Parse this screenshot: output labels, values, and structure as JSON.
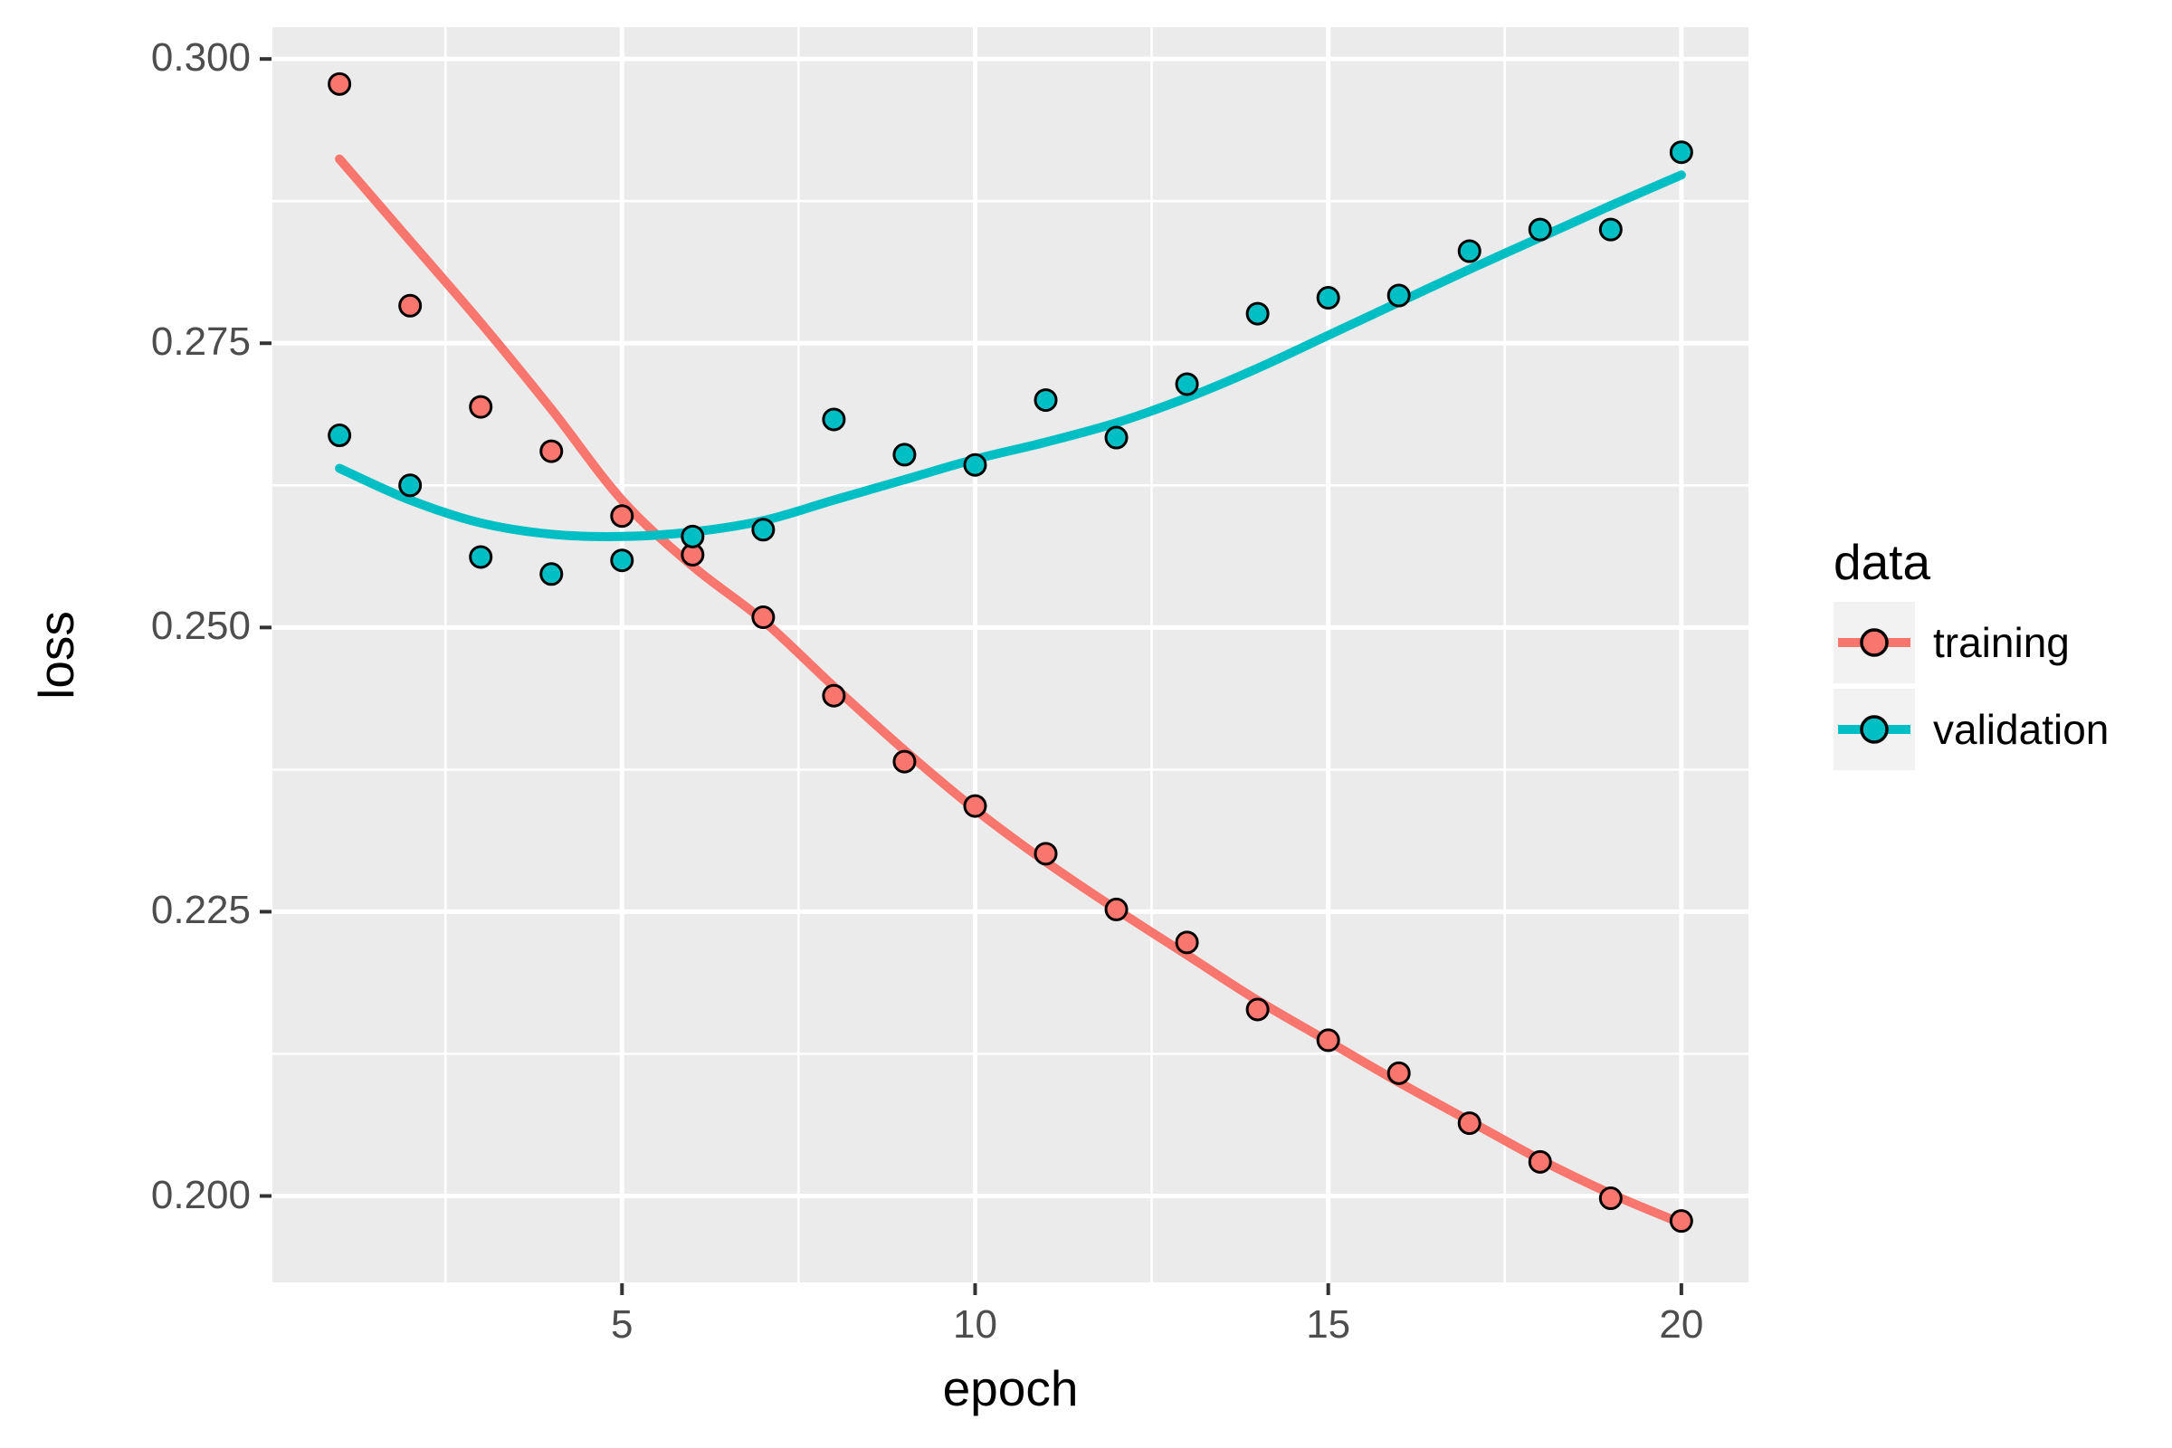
{
  "chart_data": {
    "type": "scatter",
    "xlabel": "epoch",
    "ylabel": "loss",
    "x": [
      1,
      2,
      3,
      4,
      5,
      6,
      7,
      8,
      9,
      10,
      11,
      12,
      13,
      14,
      15,
      16,
      17,
      18,
      19,
      20
    ],
    "series": [
      {
        "name": "training",
        "color": "#F8766D",
        "values": [
          0.2978,
          0.2783,
          0.2694,
          0.2655,
          0.2598,
          0.2564,
          0.2509,
          0.244,
          0.2382,
          0.2343,
          0.2301,
          0.2252,
          0.2223,
          0.2164,
          0.2137,
          0.2108,
          0.2064,
          0.203,
          0.1998,
          0.1978
        ],
        "smooth": [
          0.2912,
          0.284,
          0.2768,
          0.2692,
          0.2612,
          0.2554,
          0.2506,
          0.2448,
          0.2392,
          0.234,
          0.2294,
          0.2252,
          0.2212,
          0.2172,
          0.2136,
          0.21,
          0.2066,
          0.2032,
          0.2002,
          0.1976
        ]
      },
      {
        "name": "validation",
        "color": "#00BFC4",
        "values": [
          0.2669,
          0.2625,
          0.2562,
          0.2547,
          0.2559,
          0.258,
          0.2586,
          0.2683,
          0.2652,
          0.2643,
          0.27,
          0.2667,
          0.2714,
          0.2776,
          0.279,
          0.2792,
          0.2831,
          0.285,
          0.285,
          0.2918
        ],
        "smooth": [
          0.264,
          0.2612,
          0.2592,
          0.2582,
          0.258,
          0.2584,
          0.2594,
          0.2612,
          0.263,
          0.2648,
          0.2663,
          0.268,
          0.2702,
          0.2728,
          0.2757,
          0.2786,
          0.2815,
          0.2843,
          0.2871,
          0.2898
        ]
      }
    ],
    "legend": {
      "title": "data",
      "position": "right",
      "entries": [
        {
          "label": "training",
          "color": "#F8766D"
        },
        {
          "label": "validation",
          "color": "#00BFC4"
        }
      ]
    },
    "axes": {
      "xlim": [
        0.05,
        20.95
      ],
      "ylim": [
        0.1924,
        0.3028
      ],
      "x_ticks": [
        5,
        10,
        15,
        20
      ],
      "x_tick_labels": [
        "5",
        "10",
        "15",
        "20"
      ],
      "x_minor": [
        2.5,
        7.5,
        12.5,
        17.5
      ],
      "y_ticks": [
        0.3,
        0.275,
        0.25,
        0.225,
        0.2
      ],
      "y_tick_labels": [
        "0.300",
        "0.275",
        "0.250",
        "0.225",
        "0.200"
      ],
      "y_minor": [
        0.2875,
        0.2625,
        0.2375,
        0.2125
      ],
      "grid": true
    },
    "style": {
      "panel_bg": "#EBEBEB",
      "grid_color": "#FFFFFF",
      "tick_color": "#333333",
      "tick_label_color": "#4D4D4D",
      "axis_title_color": "#000000",
      "legend_key_bg": "#F2F2F2",
      "point_stroke": "#000000"
    }
  }
}
